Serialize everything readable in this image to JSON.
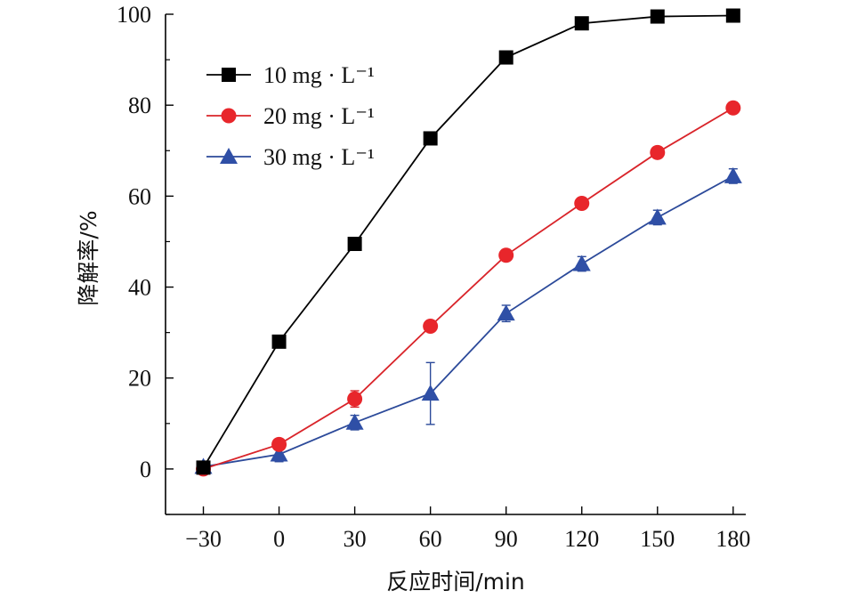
{
  "chart_data": {
    "type": "line",
    "xlabel": "反应时间/min",
    "ylabel": "降解率/%",
    "x": [
      -30,
      0,
      30,
      60,
      90,
      120,
      150,
      180
    ],
    "x_tick_labels": [
      "−30",
      "0",
      "30",
      "60",
      "90",
      "120",
      "150",
      "180"
    ],
    "xlim": [
      -45,
      185
    ],
    "ylim": [
      -10,
      100
    ],
    "y_ticks": [
      0,
      20,
      40,
      60,
      80,
      100
    ],
    "y_tick_labels": [
      "0",
      "20",
      "40",
      "60",
      "80",
      "100"
    ],
    "legend_position": "top-left",
    "grid": false,
    "series": [
      {
        "name": "10 mg · L⁻¹",
        "marker": "square",
        "color": "#000000",
        "line_color": "#000000",
        "values": [
          0.3,
          28,
          49.5,
          72.7,
          90.5,
          98,
          99.5,
          99.7
        ],
        "errors": [
          0,
          0,
          0,
          0,
          0,
          0,
          0,
          0
        ]
      },
      {
        "name": "20 mg · L⁻¹",
        "marker": "circle",
        "color": "#e8262b",
        "line_color": "#d9242a",
        "values": [
          0,
          5.4,
          15.4,
          31.4,
          47,
          58.4,
          69.6,
          79.4
        ],
        "errors": [
          0,
          0,
          1.8,
          0,
          0,
          0,
          0,
          0
        ]
      },
      {
        "name": "30 mg · L⁻¹",
        "marker": "triangle",
        "color": "#2f4fa6",
        "line_color": "#2c4a9a",
        "values": [
          0.5,
          3.2,
          10.2,
          16.6,
          34.2,
          45.1,
          55.3,
          64.4
        ],
        "errors": [
          0,
          1.6,
          1.6,
          6.8,
          1.8,
          1.6,
          1.6,
          1.6
        ]
      }
    ]
  }
}
